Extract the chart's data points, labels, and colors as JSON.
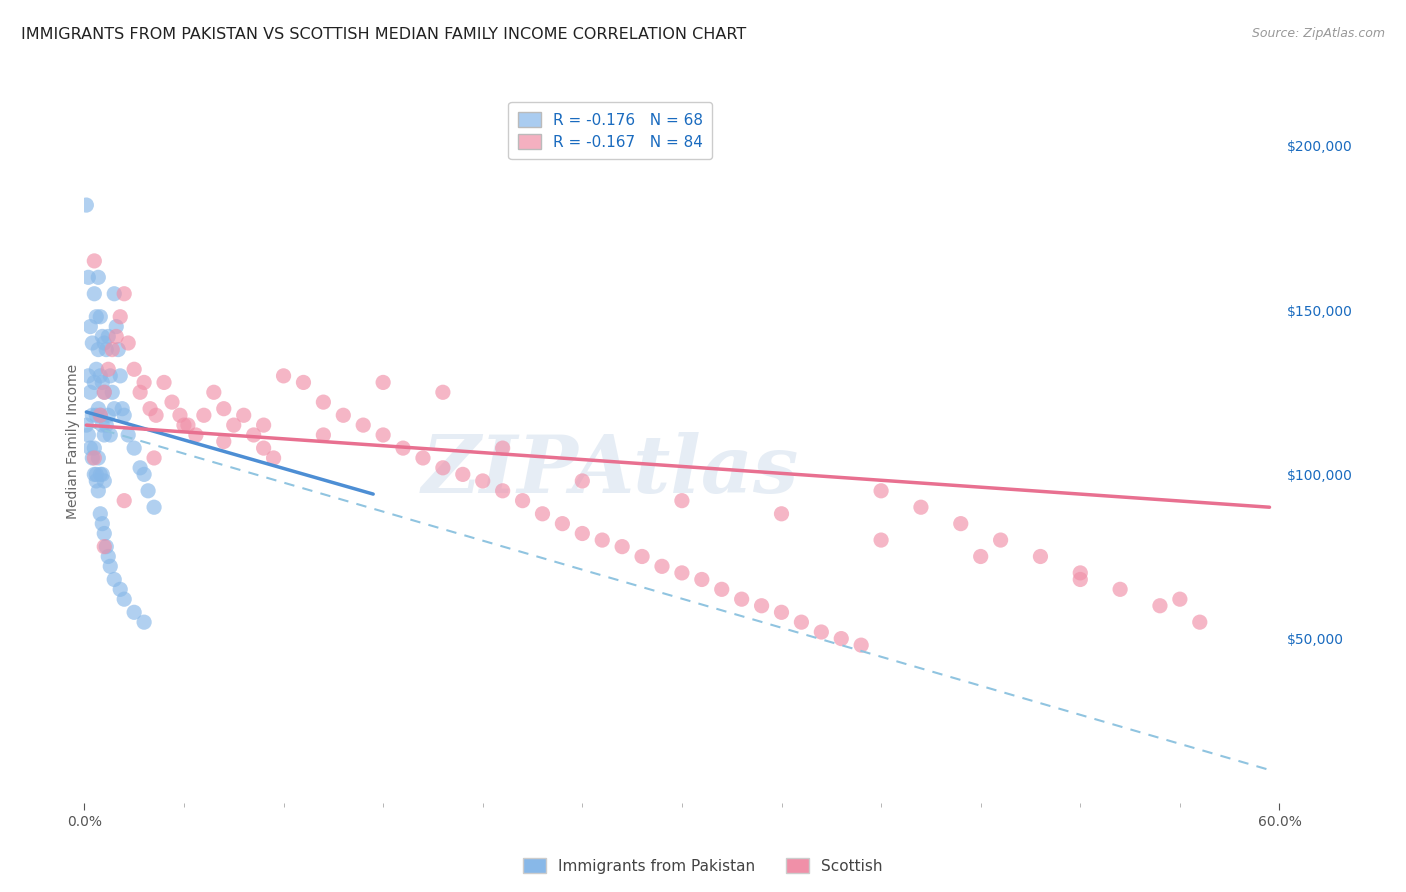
{
  "title": "IMMIGRANTS FROM PAKISTAN VS SCOTTISH MEDIAN FAMILY INCOME CORRELATION CHART",
  "source": "Source: ZipAtlas.com",
  "ylabel": "Median Family Income",
  "right_yticks": [
    0,
    50000,
    100000,
    150000,
    200000
  ],
  "right_yticklabels": [
    "",
    "$50,000",
    "$100,000",
    "$150,000",
    "$200,000"
  ],
  "xlim": [
    0.0,
    0.6
  ],
  "ylim": [
    0,
    220000
  ],
  "legend_r1": "R = -0.176   N = 68",
  "legend_r2": "R = -0.167   N = 84",
  "legend_color1": "#aaccf0",
  "legend_color2": "#f4b0c0",
  "legend_text_color": "#1a6bbf",
  "watermark": "ZIPAtlas",
  "blue_scatter_x": [
    0.001,
    0.002,
    0.002,
    0.003,
    0.003,
    0.004,
    0.004,
    0.005,
    0.005,
    0.005,
    0.006,
    0.006,
    0.006,
    0.006,
    0.007,
    0.007,
    0.007,
    0.007,
    0.008,
    0.008,
    0.008,
    0.008,
    0.009,
    0.009,
    0.009,
    0.009,
    0.01,
    0.01,
    0.01,
    0.01,
    0.011,
    0.011,
    0.012,
    0.012,
    0.013,
    0.013,
    0.014,
    0.015,
    0.015,
    0.016,
    0.017,
    0.018,
    0.019,
    0.02,
    0.022,
    0.025,
    0.028,
    0.03,
    0.032,
    0.035,
    0.001,
    0.002,
    0.003,
    0.004,
    0.005,
    0.006,
    0.007,
    0.008,
    0.009,
    0.01,
    0.011,
    0.012,
    0.013,
    0.015,
    0.018,
    0.02,
    0.025,
    0.03
  ],
  "blue_scatter_y": [
    182000,
    160000,
    130000,
    145000,
    125000,
    140000,
    118000,
    155000,
    128000,
    108000,
    148000,
    132000,
    118000,
    100000,
    160000,
    138000,
    120000,
    105000,
    148000,
    130000,
    118000,
    100000,
    142000,
    128000,
    115000,
    100000,
    140000,
    125000,
    112000,
    98000,
    138000,
    115000,
    142000,
    118000,
    130000,
    112000,
    125000,
    155000,
    120000,
    145000,
    138000,
    130000,
    120000,
    118000,
    112000,
    108000,
    102000,
    100000,
    95000,
    90000,
    115000,
    112000,
    108000,
    105000,
    100000,
    98000,
    95000,
    88000,
    85000,
    82000,
    78000,
    75000,
    72000,
    68000,
    65000,
    62000,
    58000,
    55000
  ],
  "pink_scatter_x": [
    0.005,
    0.008,
    0.01,
    0.012,
    0.014,
    0.016,
    0.018,
    0.02,
    0.022,
    0.025,
    0.028,
    0.03,
    0.033,
    0.036,
    0.04,
    0.044,
    0.048,
    0.052,
    0.056,
    0.06,
    0.065,
    0.07,
    0.075,
    0.08,
    0.085,
    0.09,
    0.095,
    0.1,
    0.11,
    0.12,
    0.13,
    0.14,
    0.15,
    0.16,
    0.17,
    0.18,
    0.19,
    0.2,
    0.21,
    0.22,
    0.23,
    0.24,
    0.25,
    0.26,
    0.27,
    0.28,
    0.29,
    0.3,
    0.31,
    0.32,
    0.33,
    0.34,
    0.35,
    0.36,
    0.37,
    0.38,
    0.39,
    0.4,
    0.42,
    0.44,
    0.46,
    0.48,
    0.5,
    0.52,
    0.54,
    0.56,
    0.01,
    0.02,
    0.035,
    0.05,
    0.07,
    0.09,
    0.12,
    0.15,
    0.18,
    0.21,
    0.25,
    0.3,
    0.35,
    0.4,
    0.45,
    0.5,
    0.55,
    0.005
  ],
  "pink_scatter_y": [
    105000,
    118000,
    125000,
    132000,
    138000,
    142000,
    148000,
    155000,
    140000,
    132000,
    125000,
    128000,
    120000,
    118000,
    128000,
    122000,
    118000,
    115000,
    112000,
    118000,
    125000,
    120000,
    115000,
    118000,
    112000,
    108000,
    105000,
    130000,
    128000,
    122000,
    118000,
    115000,
    112000,
    108000,
    105000,
    102000,
    100000,
    98000,
    95000,
    92000,
    88000,
    85000,
    82000,
    80000,
    78000,
    75000,
    72000,
    70000,
    68000,
    65000,
    62000,
    60000,
    58000,
    55000,
    52000,
    50000,
    48000,
    95000,
    90000,
    85000,
    80000,
    75000,
    70000,
    65000,
    60000,
    55000,
    78000,
    92000,
    105000,
    115000,
    110000,
    115000,
    112000,
    128000,
    125000,
    108000,
    98000,
    92000,
    88000,
    80000,
    75000,
    68000,
    62000,
    165000
  ],
  "blue_line_x": [
    0.001,
    0.145
  ],
  "blue_line_y": [
    119000,
    94000
  ],
  "pink_line_x": [
    0.001,
    0.595
  ],
  "pink_line_y": [
    115000,
    90000
  ],
  "dashed_line_x": [
    0.001,
    0.595
  ],
  "dashed_line_y": [
    115000,
    10000
  ],
  "blue_scatter_color": "#88b8e8",
  "pink_scatter_color": "#f090a8",
  "blue_line_color": "#4d8ed4",
  "pink_line_color": "#e87090",
  "dashed_line_color": "#90c4e0",
  "grid_color": "#d8d8d8",
  "title_fontsize": 11.5,
  "source_fontsize": 9,
  "scatter_size": 120,
  "scatter_alpha": 0.65
}
